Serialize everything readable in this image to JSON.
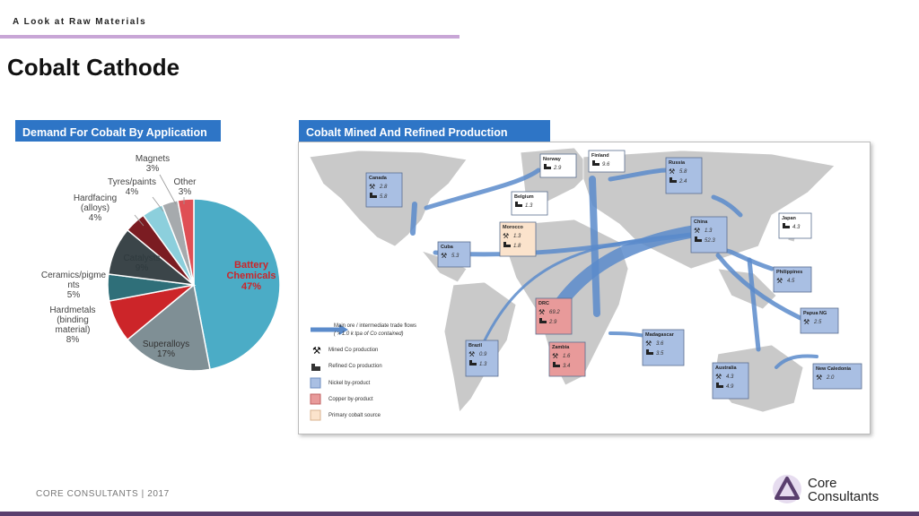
{
  "header": {
    "kicker": "A Look at Raw Materials",
    "title": "Cobalt Cathode"
  },
  "chart_data": {
    "type": "pie",
    "title": "Demand For Cobalt By Application",
    "categories": [
      "Battery Chemicals",
      "Superalloys",
      "Hardmetals (binding material)",
      "Ceramics/pigments",
      "Catalysts",
      "Hardfacing (alloys)",
      "Tyres/paints",
      "Magnets",
      "Other"
    ],
    "values": [
      47,
      17,
      8,
      5,
      9,
      4,
      4,
      3,
      3
    ],
    "value_labels": [
      "47%",
      "17%",
      "8%",
      "5%",
      "9%",
      "4%",
      "4%",
      "3%",
      "3%"
    ],
    "colors": [
      "#4bacc6",
      "#7f8f95",
      "#cc2529",
      "#2f6f79",
      "#3b4549",
      "#7b1c22",
      "#8ccfdc",
      "#a6aaad",
      "#df4f55"
    ]
  },
  "map": {
    "title": "Cobalt Mined And Refined Production",
    "nodes": [
      {
        "label": "Canada",
        "color": "#a9bfe3",
        "mined": "2.8",
        "refined": "5.8"
      },
      {
        "label": "Norway",
        "color": "#ffffff",
        "refined": "2.9"
      },
      {
        "label": "Finland",
        "color": "#ffffff",
        "refined": "9.6"
      },
      {
        "label": "Russia",
        "color": "#a9bfe3",
        "mined": "5.8",
        "refined": "2.4"
      },
      {
        "label": "Belgium",
        "color": "#ffffff",
        "refined": "1.3"
      },
      {
        "label": "Morocco",
        "color": "#fbe3cc",
        "mined": "1.3",
        "refined": "1.8"
      },
      {
        "label": "Cuba",
        "color": "#a9bfe3",
        "mined": "5.3"
      },
      {
        "label": "China",
        "color": "#a9bfe3",
        "mined": "1.3",
        "refined": "52.3"
      },
      {
        "label": "Japan",
        "color": "#ffffff",
        "refined": "4.3"
      },
      {
        "label": "Philippines",
        "color": "#a9bfe3",
        "mined": "4.5"
      },
      {
        "label": "Papua NG",
        "color": "#a9bfe3",
        "mined": "2.5"
      },
      {
        "label": "DRC",
        "color": "#e89a9a",
        "mined": "69.2",
        "refined": "2.9"
      },
      {
        "label": "Zambia",
        "color": "#e89a9a",
        "mined": "1.6",
        "refined": "3.4"
      },
      {
        "label": "Brazil",
        "color": "#a9bfe3",
        "mined": "0.9",
        "refined": "1.3"
      },
      {
        "label": "Madagascar",
        "color": "#a9bfe3",
        "mined": "3.6",
        "refined": "3.5"
      },
      {
        "label": "Australia",
        "color": "#a9bfe3",
        "mined": "4.3",
        "refined": "4.9"
      },
      {
        "label": "New Caledonia",
        "color": "#a9bfe3",
        "mined": "2.0"
      }
    ],
    "legend": [
      "Main ore / intermediate trade flows",
      "( > 1.0 k tpa of Co contained)",
      "Mined Co production",
      "Refined Co production",
      "Nickel by-product",
      "Copper by-product",
      "Primary cobalt source"
    ]
  },
  "footer": {
    "text": "CORE CONSULTANTS  | 2017",
    "logo_line1": "Core",
    "logo_line2": "Consultants"
  }
}
